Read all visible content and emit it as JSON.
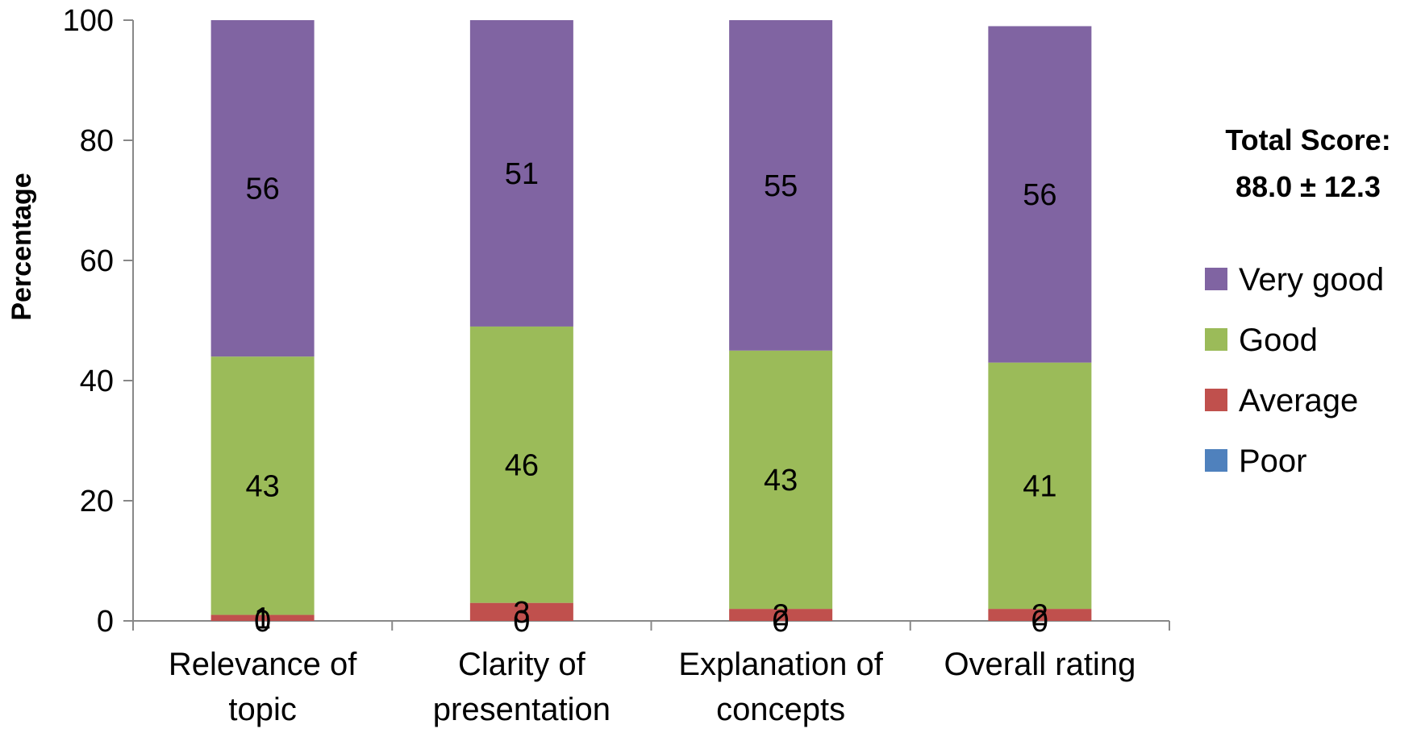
{
  "chart_data": {
    "type": "bar",
    "stacked": true,
    "categories": [
      [
        "Relevance of",
        "topic"
      ],
      [
        "Clarity of",
        "presentation"
      ],
      [
        "Explanation of",
        "concepts"
      ],
      [
        "Overall rating"
      ]
    ],
    "series": [
      {
        "name": "Poor",
        "color": "#4F81BD",
        "values": [
          0,
          0,
          0,
          0
        ]
      },
      {
        "name": "Average",
        "color": "#C0504D",
        "values": [
          1,
          3,
          2,
          2
        ]
      },
      {
        "name": "Good",
        "color": "#9BBB59",
        "values": [
          43,
          46,
          43,
          41
        ]
      },
      {
        "name": "Very good",
        "color": "#8064A2",
        "values": [
          56,
          51,
          55,
          56
        ]
      }
    ],
    "ylabel": "Percentage",
    "ylim": [
      0,
      100
    ],
    "yticks": [
      0,
      20,
      40,
      60,
      80,
      100
    ],
    "grid": false,
    "legend_position": "right",
    "legend_order": [
      "Very good",
      "Good",
      "Average",
      "Poor"
    ],
    "annotation": [
      "Total Score:",
      "88.0 ± 12.3"
    ]
  }
}
